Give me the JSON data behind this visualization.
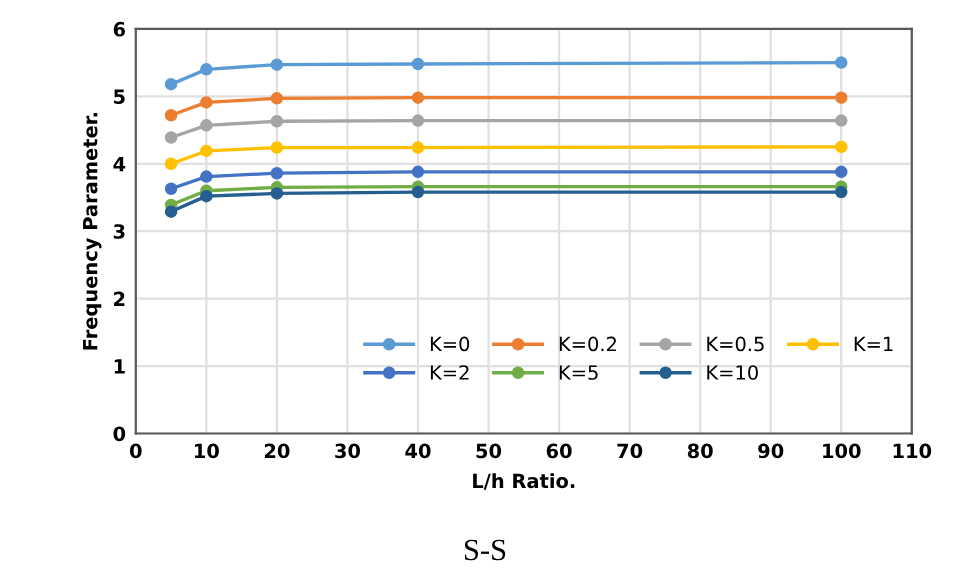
{
  "chart_data": {
    "type": "line",
    "xlabel": "L/h Ratio.",
    "ylabel": "Frequency Parameter.",
    "annotations": [
      "S-S"
    ],
    "x": [
      5,
      10,
      20,
      40,
      100
    ],
    "series": [
      {
        "name": "K=0",
        "color": "#5b9bd5",
        "values": [
          5.18,
          5.4,
          5.47,
          5.48,
          5.5
        ]
      },
      {
        "name": "K=0.2",
        "color": "#ed7d31",
        "values": [
          4.72,
          4.91,
          4.97,
          4.98,
          4.98
        ]
      },
      {
        "name": "K=0.5",
        "color": "#a5a5a5",
        "values": [
          4.39,
          4.57,
          4.63,
          4.64,
          4.64
        ]
      },
      {
        "name": "K=1",
        "color": "#ffc000",
        "values": [
          4.0,
          4.19,
          4.24,
          4.24,
          4.25
        ]
      },
      {
        "name": "K=2",
        "color": "#4472c4",
        "values": [
          3.63,
          3.81,
          3.86,
          3.88,
          3.88
        ]
      },
      {
        "name": "K=5",
        "color": "#70ad47",
        "values": [
          3.39,
          3.6,
          3.65,
          3.66,
          3.66
        ]
      },
      {
        "name": "K=10",
        "color": "#255e91",
        "values": [
          3.29,
          3.52,
          3.56,
          3.58,
          3.58
        ]
      }
    ],
    "xlim": [
      0,
      110
    ],
    "xticks": [
      0,
      10,
      20,
      30,
      40,
      50,
      60,
      70,
      80,
      90,
      100,
      110
    ],
    "ylim": [
      0,
      6
    ],
    "yticks": [
      0,
      1,
      2,
      3,
      4,
      5,
      6
    ],
    "grid": true,
    "legend": "bottom right",
    "marker": "circle",
    "line_style": "solid"
  }
}
